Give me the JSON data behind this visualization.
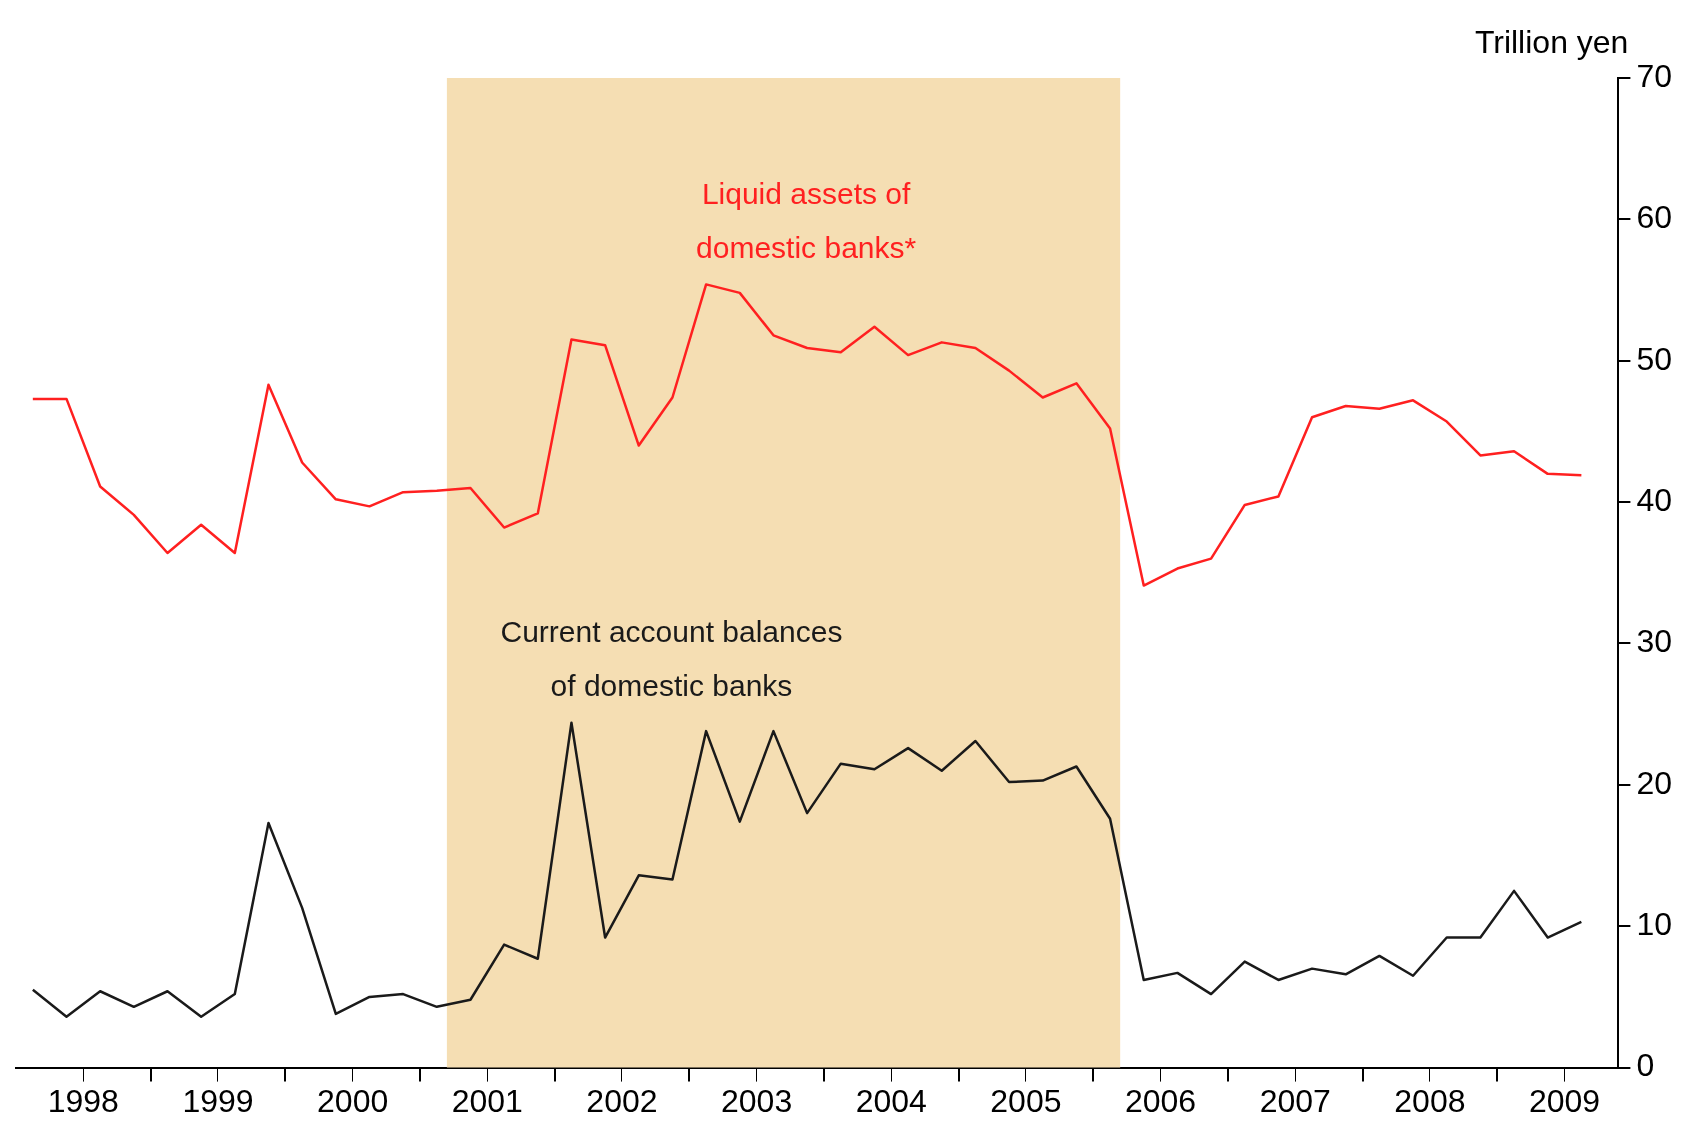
{
  "chart_data": {
    "type": "line",
    "ylabel": "Trillion yen",
    "x": [
      1998.125,
      1998.375,
      1998.625,
      1998.875,
      1999.125,
      1999.375,
      1999.625,
      1999.875,
      2000.125,
      2000.375,
      2000.625,
      2000.875,
      2001.125,
      2001.375,
      2001.625,
      2001.875,
      2002.125,
      2002.375,
      2002.625,
      2002.875,
      2003.125,
      2003.375,
      2003.625,
      2003.875,
      2004.125,
      2004.375,
      2004.625,
      2004.875,
      2005.125,
      2005.375,
      2005.625,
      2005.875,
      2006.125,
      2006.375,
      2006.625,
      2006.875,
      2007.125,
      2007.375,
      2007.625,
      2007.875,
      2008.125,
      2008.375,
      2008.625,
      2008.875,
      2009.125,
      2009.375,
      2009.625
    ],
    "series": [
      {
        "name": "Liquid assets of domestic banks*",
        "color": "#ff2020",
        "values": [
          47.3,
          47.3,
          41.1,
          39.1,
          36.4,
          38.4,
          36.4,
          48.3,
          42.8,
          40.2,
          39.7,
          40.7,
          40.8,
          41.0,
          38.2,
          39.2,
          51.5,
          51.1,
          44.0,
          47.4,
          55.4,
          54.8,
          51.8,
          50.9,
          50.6,
          52.4,
          50.4,
          51.3,
          50.9,
          49.3,
          47.4,
          48.4,
          45.2,
          34.1,
          35.3,
          36.0,
          39.8,
          40.4,
          46.0,
          46.8,
          46.6,
          47.2,
          45.7,
          43.3,
          43.6,
          42.0,
          41.9
        ]
      },
      {
        "name": "Current account balances of domestic banks",
        "color": "#1a1a1a",
        "values": [
          5.5,
          3.6,
          5.4,
          4.3,
          5.4,
          3.6,
          5.2,
          17.3,
          11.3,
          3.8,
          5.0,
          5.2,
          4.3,
          4.8,
          8.7,
          7.7,
          24.4,
          9.2,
          13.6,
          13.3,
          23.8,
          17.4,
          23.8,
          18.0,
          21.5,
          21.1,
          22.6,
          21.0,
          23.1,
          20.2,
          20.3,
          21.3,
          17.6,
          6.2,
          6.7,
          5.2,
          7.5,
          6.2,
          7.0,
          6.6,
          7.9,
          6.5,
          9.2,
          9.2,
          12.5,
          9.2,
          10.3
        ]
      }
    ],
    "xlim": [
      1998,
      2009.9
    ],
    "xticks": [
      {
        "value": 1998.5,
        "label": "1998"
      },
      {
        "value": 1999,
        "label": null
      },
      {
        "value": 1999.5,
        "label": "1999"
      },
      {
        "value": 2000,
        "label": null
      },
      {
        "value": 2000.5,
        "label": "2000"
      },
      {
        "value": 2001,
        "label": null
      },
      {
        "value": 2001.5,
        "label": "2001"
      },
      {
        "value": 2002,
        "label": null
      },
      {
        "value": 2002.5,
        "label": "2002"
      },
      {
        "value": 2003,
        "label": null
      },
      {
        "value": 2003.5,
        "label": "2003"
      },
      {
        "value": 2004,
        "label": null
      },
      {
        "value": 2004.5,
        "label": "2004"
      },
      {
        "value": 2005,
        "label": null
      },
      {
        "value": 2005.5,
        "label": "2005"
      },
      {
        "value": 2006,
        "label": null
      },
      {
        "value": 2006.5,
        "label": "2006"
      },
      {
        "value": 2007,
        "label": null
      },
      {
        "value": 2007.5,
        "label": "2007"
      },
      {
        "value": 2008,
        "label": null
      },
      {
        "value": 2008.5,
        "label": "2008"
      },
      {
        "value": 2009,
        "label": null
      },
      {
        "value": 2009.5,
        "label": "2009"
      }
    ],
    "ylim": [
      0,
      70
    ],
    "yticks": [
      0,
      10,
      20,
      30,
      40,
      50,
      60,
      70
    ],
    "bands": [
      {
        "axis": "x",
        "from": 2001.2,
        "to": 2006.2,
        "color": "#f5deb3"
      }
    ],
    "marker": "none",
    "line_style": "solid",
    "legend": false,
    "grid": false
  }
}
